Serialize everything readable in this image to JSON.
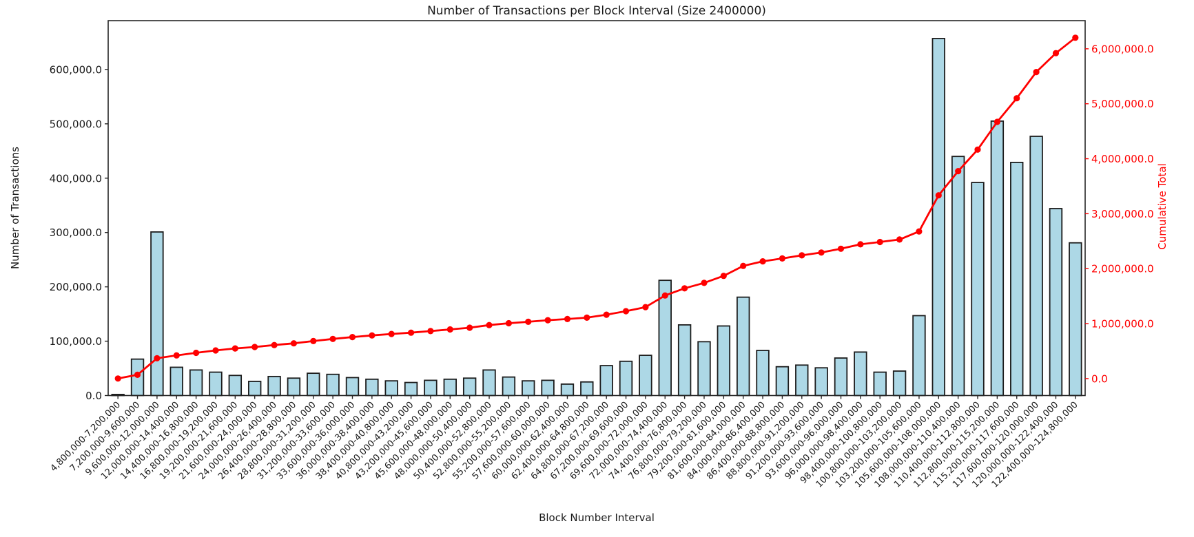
{
  "chart_data": {
    "type": "bar",
    "title": "Number of Transactions per Block Interval (Size 2400000)",
    "xlabel": "Block Number Interval",
    "ylabel_left": "Number of Transactions",
    "ylabel_right": "Cumulative Total",
    "grid": false,
    "legend": "none",
    "colors": {
      "bar_fill": "#ADD8E6",
      "bar_edge": "#1c1c1c",
      "line": "#ff0000",
      "left_tick_text": "#1a1a1a",
      "right_tick_text": "#ff0000",
      "spine": "#262626",
      "background": "#ffffff"
    },
    "categories": [
      "4,800,000-7,200,000",
      "7,200,000-9,600,000",
      "9,600,000-12,000,000",
      "12,000,000-14,400,000",
      "14,400,000-16,800,000",
      "16,800,000-19,200,000",
      "19,200,000-21,600,000",
      "21,600,000-24,000,000",
      "24,000,000-26,400,000",
      "26,400,000-28,800,000",
      "28,800,000-31,200,000",
      "31,200,000-33,600,000",
      "33,600,000-36,000,000",
      "36,000,000-38,400,000",
      "38,400,000-40,800,000",
      "40,800,000-43,200,000",
      "43,200,000-45,600,000",
      "45,600,000-48,000,000",
      "48,000,000-50,400,000",
      "50,400,000-52,800,000",
      "52,800,000-55,200,000",
      "55,200,000-57,600,000",
      "57,600,000-60,000,000",
      "60,000,000-62,400,000",
      "62,400,000-64,800,000",
      "64,800,000-67,200,000",
      "67,200,000-69,600,000",
      "69,600,000-72,000,000",
      "72,000,000-74,400,000",
      "74,400,000-76,800,000",
      "76,800,000-79,200,000",
      "79,200,000-81,600,000",
      "81,600,000-84,000,000",
      "84,000,000-86,400,000",
      "86,400,000-88,800,000",
      "88,800,000-91,200,000",
      "91,200,000-93,600,000",
      "93,600,000-96,000,000",
      "96,000,000-98,400,000",
      "98,400,000-100,800,000",
      "100,800,000-103,200,000",
      "103,200,000-105,600,000",
      "105,600,000-108,000,000",
      "108,000,000-110,400,000",
      "110,400,000-112,800,000",
      "112,800,000-115,200,000",
      "115,200,000-117,600,000",
      "117,600,000-120,000,000",
      "120,000,000-122,400,000",
      "122,400,000-124,800,000"
    ],
    "series": [
      {
        "name": "Number of Transactions",
        "type": "bar",
        "axis": "left",
        "values": [
          2000,
          67000,
          301000,
          52000,
          47000,
          43000,
          37000,
          26000,
          35000,
          32000,
          41000,
          39000,
          33000,
          30000,
          27000,
          24000,
          28000,
          30000,
          32000,
          47000,
          34000,
          27000,
          28000,
          21000,
          25000,
          55000,
          63000,
          74000,
          212000,
          130000,
          99000,
          128000,
          181000,
          83000,
          53000,
          56000,
          51000,
          69000,
          80000,
          43000,
          45000,
          147000,
          657000,
          440000,
          392000,
          505000,
          429000,
          477000,
          344000,
          281000
        ]
      },
      {
        "name": "Cumulative Total",
        "type": "line",
        "axis": "right",
        "marker": "circle",
        "values": [
          2000,
          69000,
          370000,
          422000,
          469000,
          512000,
          549000,
          575000,
          610000,
          642000,
          683000,
          722000,
          755000,
          785000,
          812000,
          836000,
          864000,
          894000,
          926000,
          973000,
          1007000,
          1034000,
          1062000,
          1083000,
          1108000,
          1163000,
          1226000,
          1300000,
          1512000,
          1642000,
          1741000,
          1869000,
          2050000,
          2133000,
          2186000,
          2242000,
          2293000,
          2362000,
          2442000,
          2485000,
          2530000,
          2677000,
          3334000,
          3774000,
          4166000,
          4671000,
          5100000,
          5577000,
          5921000,
          6202000
        ]
      }
    ],
    "left_axis": {
      "tick_labels": [
        "0.0",
        "100,000.0",
        "200,000.0",
        "300,000.0",
        "400,000.0",
        "500,000.0",
        "600,000.0"
      ],
      "tick_values": [
        0,
        100000,
        200000,
        300000,
        400000,
        500000,
        600000
      ]
    },
    "right_axis": {
      "tick_labels": [
        "0.0",
        "1,000,000.0",
        "2,000,000.0",
        "3,000,000.0",
        "4,000,000.0",
        "5,000,000.0",
        "6,000,000.0"
      ],
      "tick_values": [
        0,
        1000000,
        2000000,
        3000000,
        4000000,
        5000000,
        6000000
      ]
    }
  }
}
